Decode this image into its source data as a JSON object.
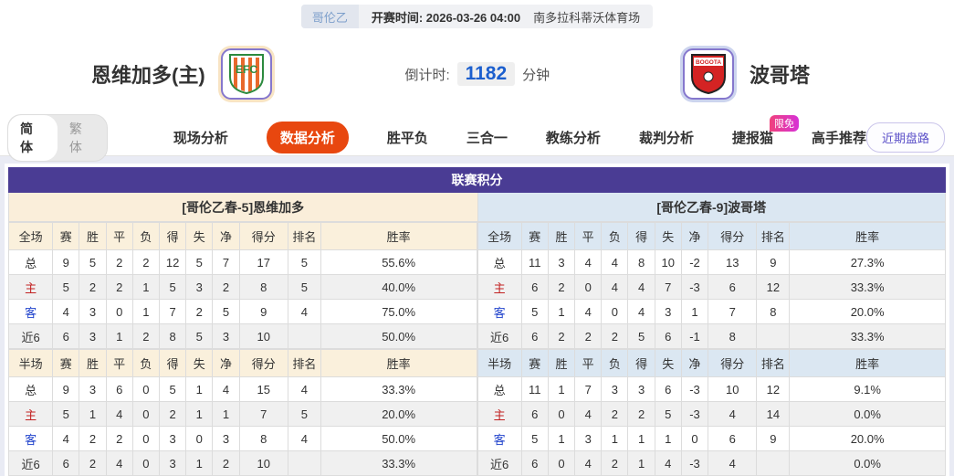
{
  "top_bar": {
    "league": "哥伦乙",
    "kickoff": "开赛时间: 2026-03-26 04:00",
    "venue": "南多拉科蒂沃体育场"
  },
  "teams": {
    "home": {
      "name": "恩维加多(主)",
      "logo_text": "EFC"
    },
    "away": {
      "name": "波哥塔",
      "logo_text": "BOGOTA"
    },
    "countdown_label": "倒计时:",
    "countdown_value": "1182",
    "countdown_unit": "分钟"
  },
  "nav": {
    "lang": {
      "simplified": "简体",
      "traditional": "繁体"
    },
    "tabs": [
      {
        "label": "现场分析",
        "active": false
      },
      {
        "label": "数据分析",
        "active": true
      },
      {
        "label": "胜平负",
        "active": false
      },
      {
        "label": "三合一",
        "active": false
      },
      {
        "label": "教练分析",
        "active": false
      },
      {
        "label": "裁判分析",
        "active": false
      },
      {
        "label": "捷报猫",
        "active": false,
        "badge": "限免"
      },
      {
        "label": "高手推荐",
        "active": false
      }
    ],
    "recent_button": "近期盘路"
  },
  "league_table": {
    "title": "联赛积分",
    "columns_full": [
      "全场",
      "赛",
      "胜",
      "平",
      "负",
      "得",
      "失",
      "净",
      "得分",
      "排名",
      "胜率"
    ],
    "columns_half": [
      "半场",
      "赛",
      "胜",
      "平",
      "负",
      "得",
      "失",
      "净",
      "得分",
      "排名",
      "胜率"
    ],
    "home": {
      "header": "[哥伦乙春-5]恩维加多",
      "full_rows": [
        [
          "总",
          "9",
          "5",
          "2",
          "2",
          "12",
          "5",
          "7",
          "17",
          "5",
          "55.6%"
        ],
        [
          "主",
          "5",
          "2",
          "2",
          "1",
          "5",
          "3",
          "2",
          "8",
          "5",
          "40.0%"
        ],
        [
          "客",
          "4",
          "3",
          "0",
          "1",
          "7",
          "2",
          "5",
          "9",
          "4",
          "75.0%"
        ],
        [
          "近6",
          "6",
          "3",
          "1",
          "2",
          "8",
          "5",
          "3",
          "10",
          "",
          "50.0%"
        ]
      ],
      "half_rows": [
        [
          "总",
          "9",
          "3",
          "6",
          "0",
          "5",
          "1",
          "4",
          "15",
          "4",
          "33.3%"
        ],
        [
          "主",
          "5",
          "1",
          "4",
          "0",
          "2",
          "1",
          "1",
          "7",
          "5",
          "20.0%"
        ],
        [
          "客",
          "4",
          "2",
          "2",
          "0",
          "3",
          "0",
          "3",
          "8",
          "4",
          "50.0%"
        ],
        [
          "近6",
          "6",
          "2",
          "4",
          "0",
          "3",
          "1",
          "2",
          "10",
          "",
          "33.3%"
        ]
      ]
    },
    "away": {
      "header": "[哥伦乙春-9]波哥塔",
      "full_rows": [
        [
          "总",
          "11",
          "3",
          "4",
          "4",
          "8",
          "10",
          "-2",
          "13",
          "9",
          "27.3%"
        ],
        [
          "主",
          "6",
          "2",
          "0",
          "4",
          "4",
          "7",
          "-3",
          "6",
          "12",
          "33.3%"
        ],
        [
          "客",
          "5",
          "1",
          "4",
          "0",
          "4",
          "3",
          "1",
          "7",
          "8",
          "20.0%"
        ],
        [
          "近6",
          "6",
          "2",
          "2",
          "2",
          "5",
          "6",
          "-1",
          "8",
          "",
          "33.3%"
        ]
      ],
      "half_rows": [
        [
          "总",
          "11",
          "1",
          "7",
          "3",
          "3",
          "6",
          "-3",
          "10",
          "12",
          "9.1%"
        ],
        [
          "主",
          "6",
          "0",
          "4",
          "2",
          "2",
          "5",
          "-3",
          "4",
          "14",
          "0.0%"
        ],
        [
          "客",
          "5",
          "1",
          "3",
          "1",
          "1",
          "1",
          "0",
          "6",
          "9",
          "20.0%"
        ],
        [
          "近6",
          "6",
          "0",
          "4",
          "2",
          "1",
          "4",
          "-3",
          "4",
          "",
          "0.0%"
        ]
      ]
    }
  },
  "colors": {
    "title_purple": "#4a3c94",
    "active_tab_orange": "#e8470f",
    "home_section_bg": "#faeeda",
    "away_section_bg": "#dbe7f2",
    "home_row_red": "#c22222",
    "away_row_blue": "#2244cc",
    "countdown_blue": "#1c5fce",
    "page_bg": "#e9ebf4"
  }
}
